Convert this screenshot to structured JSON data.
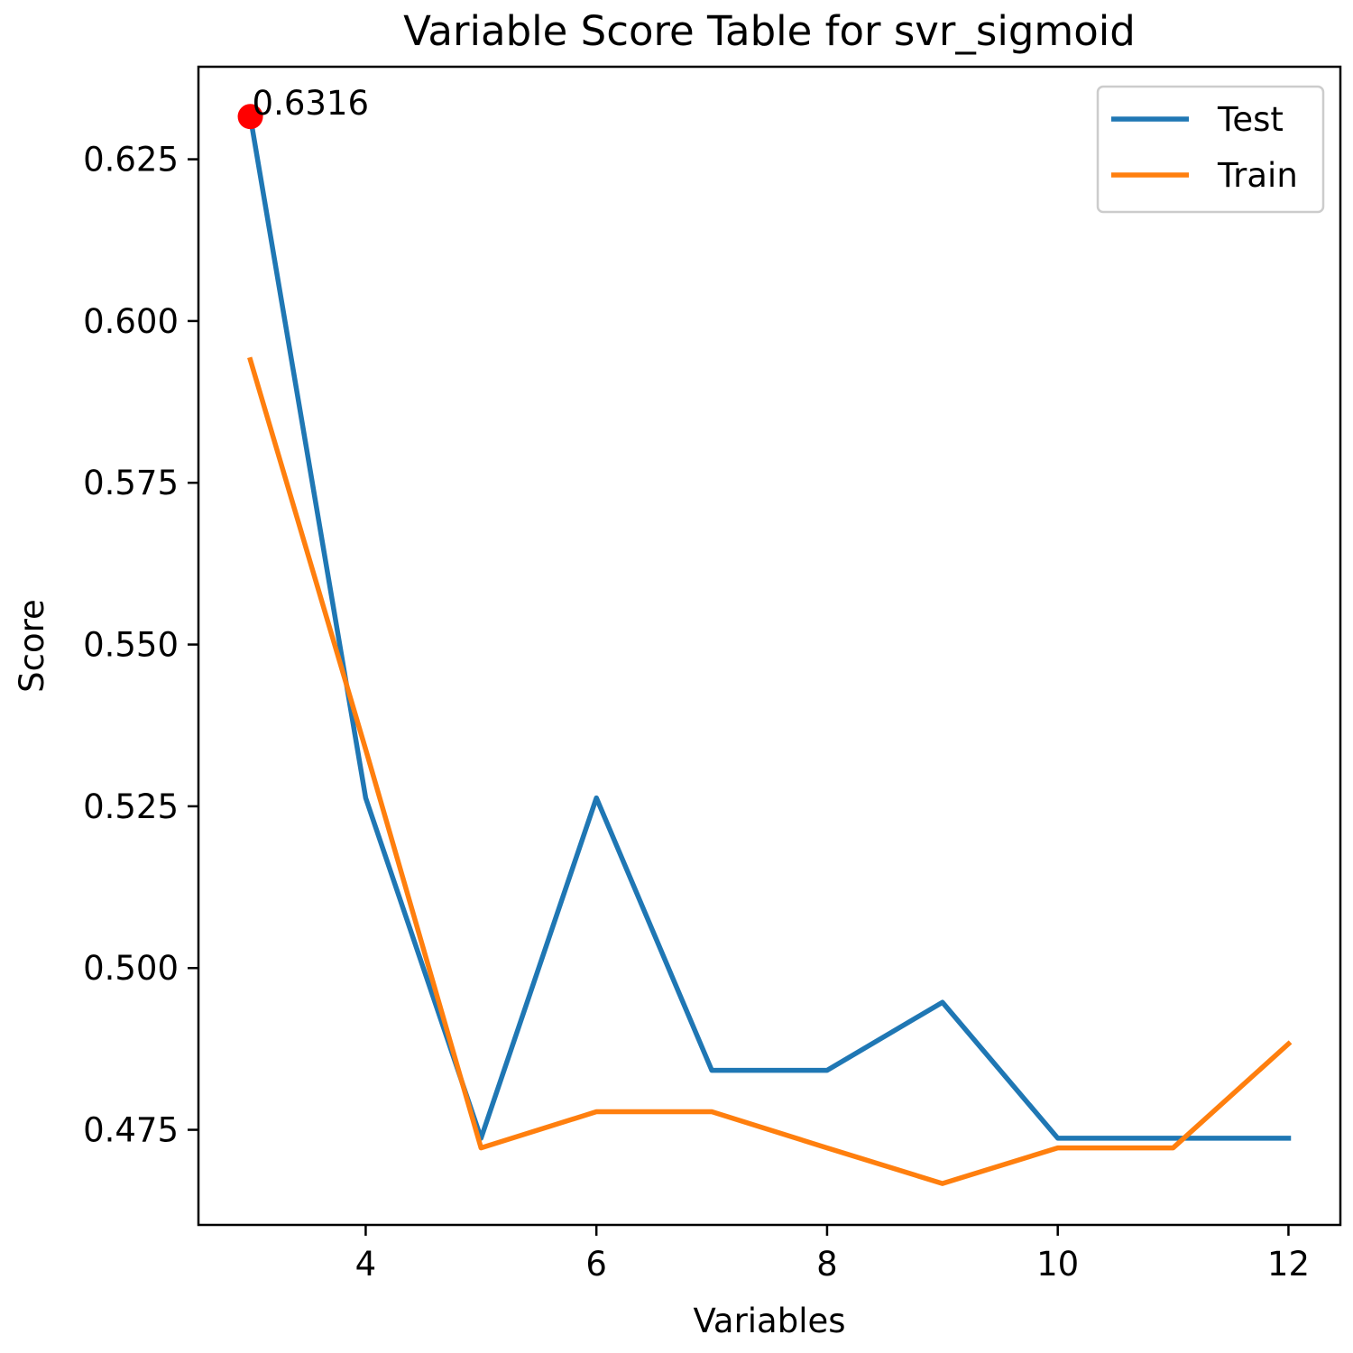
{
  "chart_data": {
    "type": "line",
    "title": "Variable Score Table for svr_sigmoid",
    "xlabel": "Variables",
    "ylabel": "Score",
    "x": [
      3,
      4,
      5,
      6,
      7,
      8,
      9,
      10,
      11,
      12
    ],
    "xlim": [
      2.55,
      12.45
    ],
    "ylim": [
      0.4603,
      0.6393
    ],
    "xticks": [
      4,
      6,
      8,
      10,
      12
    ],
    "yticks": [
      0.475,
      0.5,
      0.525,
      0.55,
      0.575,
      0.6,
      0.625
    ],
    "xtick_labels": [
      "4",
      "6",
      "8",
      "10",
      "12"
    ],
    "ytick_labels": [
      "0.475",
      "0.500",
      "0.525",
      "0.550",
      "0.575",
      "0.600",
      "0.625"
    ],
    "series": [
      {
        "name": "Test",
        "color": "#1f77b4",
        "values": [
          0.6316,
          0.5263,
          0.4737,
          0.5263,
          0.4842,
          0.4842,
          0.4947,
          0.4737,
          0.4737,
          0.4737
        ]
      },
      {
        "name": "Train",
        "color": "#ff7f0e",
        "values": [
          0.594,
          0.5338,
          0.4722,
          0.4778,
          0.4778,
          0.4722,
          0.4667,
          0.4722,
          0.4722,
          0.4883
        ]
      }
    ],
    "highlight": {
      "x": 3,
      "y": 0.6316,
      "label": "0.6316",
      "color": "#ff0000"
    },
    "legend": {
      "position": "top-right",
      "entries": [
        "Test",
        "Train"
      ]
    },
    "grid": false
  }
}
